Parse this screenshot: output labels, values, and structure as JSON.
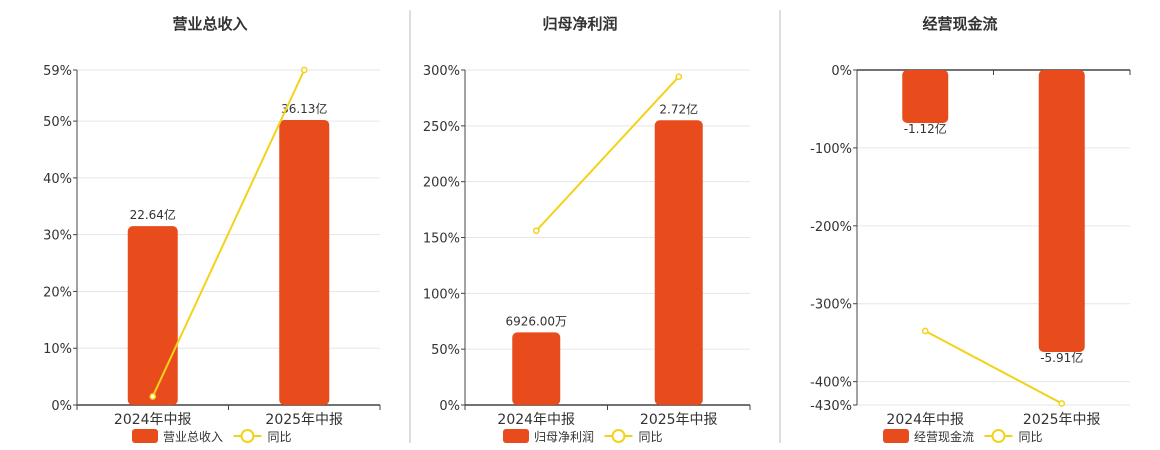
{
  "colors": {
    "bar": "#E84B1C",
    "line": "#F2D31A",
    "axis": "#444444",
    "grid": "#E6E6E6",
    "divider": "#BBBBBB",
    "text": "#333333"
  },
  "chart_data": [
    {
      "type": "bar",
      "title": "营业总收入",
      "categories": [
        "2024年中报",
        "2025年中报"
      ],
      "series": [
        {
          "name": "营业总收入",
          "kind": "bar",
          "values": [
            31.5,
            50.2
          ],
          "labels": [
            "22.64亿",
            "36.13亿"
          ]
        },
        {
          "name": "同比",
          "kind": "line",
          "values": [
            1.5,
            59
          ]
        }
      ],
      "ylim": [
        0,
        59
      ],
      "yticks": [
        0,
        10,
        20,
        30,
        40,
        50,
        59
      ],
      "ytick_labels": [
        "0%",
        "10%",
        "20%",
        "30%",
        "40%",
        "50%",
        "59%"
      ],
      "grid": true,
      "legend": "bottom"
    },
    {
      "type": "bar",
      "title": "归母净利润",
      "categories": [
        "2024年中报",
        "2025年中报"
      ],
      "series": [
        {
          "name": "归母净利润",
          "kind": "bar",
          "values": [
            65,
            255
          ],
          "labels": [
            "6926.00万",
            "2.72亿"
          ]
        },
        {
          "name": "同比",
          "kind": "line",
          "values": [
            156,
            294
          ]
        }
      ],
      "ylim": [
        0,
        300
      ],
      "yticks": [
        0,
        50,
        100,
        150,
        200,
        250,
        300
      ],
      "ytick_labels": [
        "0%",
        "50%",
        "100%",
        "150%",
        "200%",
        "250%",
        "300%"
      ],
      "grid": true,
      "legend": "bottom"
    },
    {
      "type": "bar",
      "title": "经营现金流",
      "categories": [
        "2024年中报",
        "2025年中报"
      ],
      "series": [
        {
          "name": "经营现金流",
          "kind": "bar",
          "values": [
            -68,
            -362
          ],
          "labels": [
            "-1.12亿",
            "-5.91亿"
          ]
        },
        {
          "name": "同比",
          "kind": "line",
          "values": [
            -335,
            -428
          ]
        }
      ],
      "ylim": [
        -430,
        0
      ],
      "yticks": [
        0,
        -100,
        -200,
        -300,
        -400,
        -430
      ],
      "ytick_labels": [
        "0%",
        "-100%",
        "-200%",
        "-300%",
        "-400%",
        "-430%"
      ],
      "grid": true,
      "legend": "bottom"
    }
  ]
}
